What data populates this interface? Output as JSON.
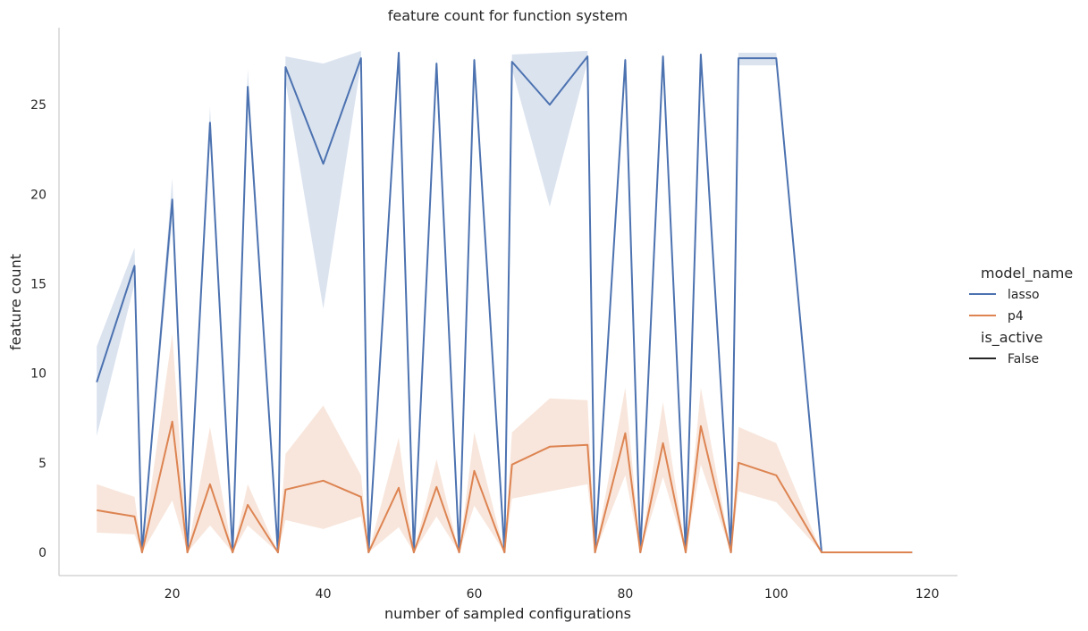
{
  "chart_data": {
    "type": "line",
    "title": "feature count for function system",
    "xlabel": "number of sampled configurations",
    "ylabel": "feature count",
    "xlim": [
      5,
      124
    ],
    "ylim": [
      -1.3,
      29.3
    ],
    "xticks": [
      20,
      40,
      60,
      80,
      100,
      120
    ],
    "yticks": [
      0,
      5,
      10,
      15,
      20,
      25
    ],
    "grid": false,
    "legend": {
      "placement": "right",
      "hue_title": "model_name",
      "style_title": "is_active",
      "style_entries": [
        "False"
      ]
    },
    "series": [
      {
        "name": "lasso",
        "color": "#4c72b0",
        "x": [
          10,
          15,
          16,
          20,
          22,
          25,
          28,
          30,
          34,
          35,
          40,
          45,
          46,
          50,
          52,
          55,
          58,
          60,
          64,
          65,
          70,
          75,
          76,
          80,
          82,
          85,
          88,
          90,
          94,
          95,
          100,
          106,
          112,
          118
        ],
        "y": [
          9.5,
          16.0,
          0,
          19.7,
          0,
          24.0,
          0,
          26.0,
          0,
          27.1,
          21.7,
          27.6,
          0,
          27.9,
          0,
          27.3,
          0,
          27.5,
          0,
          27.4,
          25.0,
          27.7,
          0,
          27.5,
          0,
          27.7,
          0,
          27.8,
          0,
          27.6,
          27.6,
          0,
          0,
          0
        ],
        "lower": [
          6.5,
          15.0,
          0,
          18.5,
          0,
          23.0,
          0,
          25.0,
          0,
          26.3,
          13.6,
          27.3,
          0,
          27.8,
          0,
          27.0,
          0,
          27.2,
          0,
          27.0,
          19.3,
          27.4,
          0,
          27.3,
          0,
          27.5,
          0,
          27.6,
          0,
          27.2,
          27.2,
          0,
          0,
          0
        ],
        "upper": [
          11.5,
          17.0,
          0,
          20.9,
          0,
          24.9,
          0,
          27.0,
          0,
          27.7,
          27.3,
          28.0,
          0,
          28.0,
          0,
          27.6,
          0,
          27.8,
          0,
          27.8,
          27.9,
          28.0,
          0,
          27.8,
          0,
          27.9,
          0,
          28.0,
          0,
          27.9,
          27.9,
          0,
          0,
          0
        ]
      },
      {
        "name": "p4",
        "color": "#dd8452",
        "x": [
          10,
          15,
          16,
          20,
          22,
          25,
          28,
          30,
          34,
          35,
          40,
          45,
          46,
          50,
          52,
          55,
          58,
          60,
          64,
          65,
          70,
          75,
          76,
          80,
          82,
          85,
          88,
          90,
          94,
          95,
          100,
          106,
          112,
          118
        ],
        "y": [
          2.35,
          2.0,
          0,
          7.3,
          0,
          3.8,
          0,
          2.65,
          0,
          3.5,
          4.0,
          3.1,
          0,
          3.6,
          0,
          3.65,
          0,
          4.55,
          0,
          4.9,
          5.9,
          6.0,
          0,
          6.65,
          0,
          6.1,
          0,
          7.05,
          0,
          5.0,
          4.3,
          0,
          0,
          0
        ],
        "lower": [
          1.1,
          1.0,
          0,
          2.9,
          0,
          1.5,
          0,
          1.5,
          0,
          1.8,
          1.3,
          2.0,
          0,
          1.4,
          0,
          2.0,
          0,
          2.6,
          0,
          3.0,
          3.4,
          3.8,
          0,
          4.3,
          0,
          4.2,
          0,
          4.9,
          0,
          3.4,
          2.8,
          0,
          0,
          0
        ],
        "upper": [
          3.8,
          3.1,
          0,
          12.2,
          0,
          7.0,
          0,
          3.8,
          0,
          5.5,
          8.2,
          4.3,
          0,
          6.4,
          0,
          5.2,
          0,
          6.7,
          0,
          6.7,
          8.6,
          8.5,
          0,
          9.2,
          0,
          8.4,
          0,
          9.2,
          0,
          7.0,
          6.1,
          0,
          0,
          0
        ]
      }
    ]
  }
}
